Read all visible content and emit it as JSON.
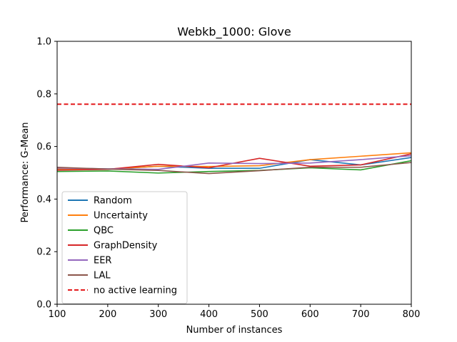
{
  "chart_data": {
    "type": "line",
    "title": "Webkb_1000: Glove",
    "xlabel": "Number of instances",
    "ylabel": "Performance: G-Mean",
    "xlim": [
      100,
      800
    ],
    "ylim": [
      0.0,
      1.0
    ],
    "xticks": [
      "100",
      "200",
      "300",
      "400",
      "500",
      "600",
      "700",
      "800"
    ],
    "yticks": [
      "0.0",
      "0.2",
      "0.4",
      "0.6",
      "0.8",
      "1.0"
    ],
    "grid": false,
    "legend_position": "lower-left",
    "x": [
      100,
      200,
      300,
      400,
      500,
      600,
      700,
      800
    ],
    "series": [
      {
        "name": "Random",
        "color": "#1f77b4",
        "style": "solid",
        "values": [
          0.512,
          0.513,
          0.525,
          0.517,
          0.517,
          0.55,
          0.53,
          0.558
        ]
      },
      {
        "name": "Uncertainty",
        "color": "#ff7f0e",
        "style": "solid",
        "values": [
          0.515,
          0.514,
          0.525,
          0.524,
          0.527,
          0.55,
          0.563,
          0.576
        ]
      },
      {
        "name": "QBC",
        "color": "#2ca02c",
        "style": "solid",
        "values": [
          0.505,
          0.507,
          0.499,
          0.505,
          0.509,
          0.519,
          0.511,
          0.546
        ]
      },
      {
        "name": "GraphDensity",
        "color": "#d62728",
        "style": "solid",
        "values": [
          0.51,
          0.513,
          0.532,
          0.519,
          0.555,
          0.525,
          0.53,
          0.572
        ]
      },
      {
        "name": "EER",
        "color": "#9467bd",
        "style": "solid",
        "values": [
          0.518,
          0.515,
          0.513,
          0.537,
          0.535,
          0.537,
          0.55,
          0.565
        ]
      },
      {
        "name": "LAL",
        "color": "#8c564b",
        "style": "solid",
        "values": [
          0.521,
          0.514,
          0.509,
          0.497,
          0.508,
          0.521,
          0.521,
          0.539
        ]
      }
    ],
    "reference_line": {
      "name": "no active learning",
      "value": 0.761,
      "color": "#e41a1c",
      "style": "dashed"
    }
  }
}
